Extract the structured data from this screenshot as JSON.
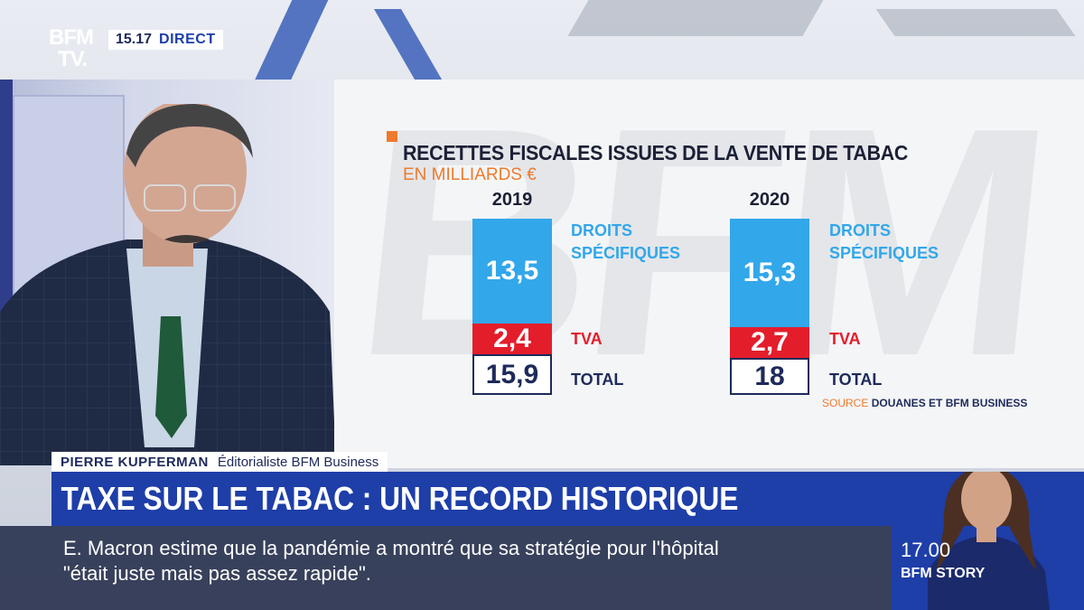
{
  "channel": {
    "logo_line1": "BFM",
    "logo_line2": "TV.",
    "time": "15.17",
    "live_label": "DIRECT"
  },
  "graphic": {
    "title": "RECETTES FISCALES ISSUES DE LA VENTE DE TABAC",
    "subtitle": "EN MILLIARDS €",
    "watermark": "BFM",
    "source_prefix": "SOURCE",
    "source_text": "DOUANES ET BFM BUSINESS",
    "colors": {
      "droits": "#32a7ea",
      "tva": "#e41d2b",
      "total": "#1e2a5a",
      "accent": "#ee7a2c"
    }
  },
  "chart_data": {
    "type": "bar",
    "categories": [
      "2019",
      "2020"
    ],
    "series": [
      {
        "name": "DROITS SPÉCIFIQUES",
        "values": [
          13.5,
          15.3
        ],
        "labels": [
          "13,5",
          "15,3"
        ]
      },
      {
        "name": "TVA",
        "values": [
          2.4,
          2.7
        ],
        "labels": [
          "2,4",
          "2,7"
        ]
      },
      {
        "name": "TOTAL",
        "values": [
          15.9,
          18
        ],
        "labels": [
          "15,9",
          "18"
        ]
      }
    ],
    "title": "RECETTES FISCALES ISSUES DE LA VENTE DE TABAC",
    "subtitle": "EN MILLIARDS €",
    "series_labels": {
      "droits_line1": "DROITS",
      "droits_line2": "SPÉCIFIQUES",
      "tva": "TVA",
      "total": "TOTAL"
    }
  },
  "lower_third": {
    "guest_name": "PIERRE KUPFERMAN",
    "guest_role": "Éditorialiste BFM Business",
    "headline": "TAXE SUR LE TABAC : UN RECORD HISTORIQUE",
    "ticker_line1": "E. Macron estime que la pandémie a montré que sa stratégie pour l'hôpital",
    "ticker_line2": "\"était juste mais pas assez rapide\"."
  },
  "next_program": {
    "time": "17.00",
    "title": "BFM STORY"
  }
}
